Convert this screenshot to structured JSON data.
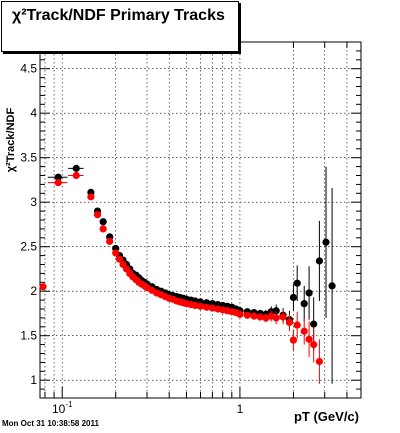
{
  "footer": "Mon Oct 31 10:38:58 2011",
  "chart_data": {
    "type": "scatter",
    "title": "χ²Track/NDF  Primary Tracks",
    "xlabel": "pT (GeV/c)",
    "ylabel": "χ²Track/NDF",
    "xscale": "log",
    "xlim": [
      0.075,
      4.8
    ],
    "ylim": [
      0.8,
      4.8
    ],
    "grid": true,
    "xtick_labels": [
      {
        "value": 0.1,
        "base": "10",
        "exp": "-1"
      },
      {
        "value": 1,
        "base": "1",
        "exp": ""
      }
    ],
    "yticks": [
      1,
      1.5,
      2,
      2.5,
      3,
      3.5,
      4,
      4.5
    ],
    "ytick_labels": [
      "1",
      "1.5",
      "2",
      "2.5",
      "3",
      "3.5",
      "4",
      "4.5"
    ],
    "colors": {
      "black_series": "#000000",
      "red_series": "#ff0000"
    },
    "series": [
      {
        "color": "#000000",
        "x": [
          0.095,
          0.12,
          0.145,
          0.158,
          0.17,
          0.185,
          0.2,
          0.21,
          0.22,
          0.23,
          0.24,
          0.25,
          0.26,
          0.27,
          0.28,
          0.29,
          0.3,
          0.32,
          0.34,
          0.36,
          0.38,
          0.4,
          0.42,
          0.44,
          0.46,
          0.48,
          0.5,
          0.53,
          0.56,
          0.6,
          0.65,
          0.7,
          0.75,
          0.8,
          0.85,
          0.9,
          0.95,
          1.0,
          1.1,
          1.2,
          1.3,
          1.4,
          1.5,
          1.6,
          1.75,
          1.9,
          2.0,
          2.1,
          2.3,
          2.45,
          2.6,
          2.8,
          3.05,
          3.3
        ],
        "y": [
          3.28,
          3.38,
          3.11,
          2.9,
          2.78,
          2.61,
          2.48,
          2.4,
          2.35,
          2.3,
          2.25,
          2.2,
          2.18,
          2.15,
          2.12,
          2.1,
          2.08,
          2.05,
          2.02,
          2.0,
          1.98,
          1.96,
          1.95,
          1.94,
          1.93,
          1.92,
          1.91,
          1.9,
          1.89,
          1.88,
          1.87,
          1.86,
          1.85,
          1.84,
          1.83,
          1.82,
          1.8,
          1.78,
          1.77,
          1.76,
          1.75,
          1.74,
          1.77,
          1.78,
          1.73,
          1.68,
          1.93,
          2.09,
          1.86,
          1.98,
          1.63,
          2.34,
          2.55,
          2.06
        ],
        "yerr": [
          0.02,
          0.02,
          0.02,
          0.02,
          0.02,
          0.02,
          0.02,
          0.02,
          0.02,
          0.02,
          0.02,
          0.02,
          0.02,
          0.02,
          0.02,
          0.02,
          0.02,
          0.02,
          0.02,
          0.02,
          0.02,
          0.02,
          0.02,
          0.02,
          0.02,
          0.02,
          0.02,
          0.02,
          0.02,
          0.02,
          0.02,
          0.02,
          0.02,
          0.02,
          0.02,
          0.03,
          0.03,
          0.03,
          0.03,
          0.04,
          0.04,
          0.05,
          0.06,
          0.07,
          0.08,
          0.1,
          0.15,
          0.2,
          0.2,
          0.3,
          0.3,
          0.45,
          0.85,
          1.1
        ],
        "xerr": [
          0.012,
          0.012,
          0,
          0,
          0,
          0,
          0,
          0,
          0,
          0,
          0,
          0,
          0,
          0,
          0,
          0,
          0,
          0,
          0,
          0,
          0,
          0,
          0,
          0,
          0,
          0,
          0,
          0,
          0,
          0,
          0,
          0,
          0,
          0,
          0,
          0,
          0,
          0,
          0,
          0,
          0,
          0,
          0,
          0,
          0,
          0,
          0,
          0,
          0,
          0,
          0,
          0,
          0,
          0
        ]
      },
      {
        "color": "#ff0000",
        "x": [
          0.078,
          0.095,
          0.12,
          0.145,
          0.158,
          0.17,
          0.185,
          0.2,
          0.21,
          0.22,
          0.23,
          0.24,
          0.25,
          0.26,
          0.27,
          0.28,
          0.29,
          0.3,
          0.32,
          0.34,
          0.36,
          0.38,
          0.4,
          0.42,
          0.44,
          0.46,
          0.48,
          0.5,
          0.53,
          0.56,
          0.6,
          0.65,
          0.7,
          0.75,
          0.8,
          0.85,
          0.9,
          0.95,
          1.0,
          1.1,
          1.2,
          1.3,
          1.4,
          1.5,
          1.6,
          1.75,
          1.9,
          2.0,
          2.1,
          2.3,
          2.45,
          2.6,
          2.8
        ],
        "y": [
          2.05,
          3.22,
          3.3,
          3.06,
          2.86,
          2.7,
          2.56,
          2.43,
          2.36,
          2.3,
          2.25,
          2.2,
          2.16,
          2.13,
          2.1,
          2.08,
          2.06,
          2.04,
          2.01,
          1.98,
          1.96,
          1.94,
          1.92,
          1.91,
          1.89,
          1.88,
          1.87,
          1.86,
          1.85,
          1.84,
          1.83,
          1.82,
          1.81,
          1.8,
          1.79,
          1.78,
          1.77,
          1.76,
          1.74,
          1.73,
          1.72,
          1.71,
          1.7,
          1.72,
          1.7,
          1.71,
          1.65,
          1.45,
          1.62,
          1.55,
          1.46,
          1.4,
          1.21
        ],
        "yerr": [
          0.02,
          0.02,
          0.02,
          0.02,
          0.02,
          0.02,
          0.02,
          0.02,
          0.02,
          0.02,
          0.02,
          0.02,
          0.02,
          0.02,
          0.02,
          0.02,
          0.02,
          0.02,
          0.02,
          0.02,
          0.02,
          0.02,
          0.02,
          0.02,
          0.02,
          0.02,
          0.02,
          0.02,
          0.02,
          0.02,
          0.02,
          0.02,
          0.02,
          0.02,
          0.02,
          0.02,
          0.03,
          0.03,
          0.03,
          0.03,
          0.04,
          0.04,
          0.05,
          0.06,
          0.07,
          0.08,
          0.1,
          0.12,
          0.15,
          0.15,
          0.2,
          0.2,
          0.25
        ],
        "xerr": [
          0,
          0.012,
          0.012,
          0,
          0,
          0,
          0,
          0,
          0,
          0,
          0,
          0,
          0,
          0,
          0,
          0,
          0,
          0,
          0,
          0,
          0,
          0,
          0,
          0,
          0,
          0,
          0,
          0,
          0,
          0,
          0,
          0,
          0,
          0,
          0,
          0,
          0,
          0,
          0,
          0,
          0,
          0,
          0,
          0,
          0,
          0,
          0,
          0,
          0,
          0,
          0,
          0,
          0
        ]
      }
    ]
  }
}
